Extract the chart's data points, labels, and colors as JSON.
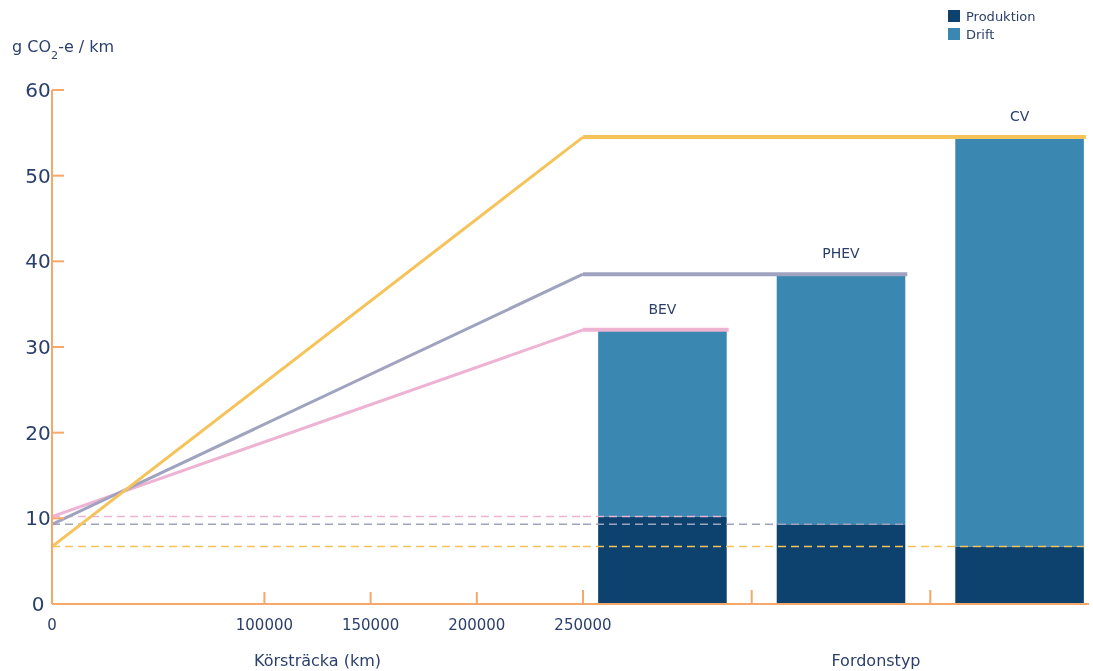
{
  "chart_data": [
    {
      "type": "line",
      "ylabel": "g CO$_{2}$-e / km",
      "xlabel": "Körsträcka (km)",
      "xlim": [
        0,
        250000
      ],
      "xticks": [
        0,
        100000,
        150000,
        200000,
        250000
      ],
      "ylim": [
        0,
        60
      ],
      "yticks": [
        0,
        10,
        20,
        30,
        40,
        50,
        60
      ],
      "grid": false,
      "marker": "none",
      "line_style": "solid",
      "x": [
        0,
        250000
      ],
      "series": [
        {
          "color": "#eeb3d3",
          "values": [
            10.2,
            32
          ]
        },
        {
          "color": "#a0a3bf",
          "values": [
            9.3,
            38.5
          ]
        },
        {
          "color": "#f5c35a",
          "values": [
            6.7,
            54.5
          ]
        }
      ],
      "ref_lines": [
        {
          "axis": "y",
          "value": 10.2,
          "color": "#eeb3d3",
          "line_style": "dashed"
        },
        {
          "axis": "y",
          "value": 9.3,
          "color": "#a0a3bf",
          "line_style": "dashed"
        },
        {
          "axis": "y",
          "value": 6.7,
          "color": "#f5c35a",
          "line_style": "dashed"
        }
      ]
    },
    {
      "type": "bar",
      "xlabel": "Fordonstyp",
      "categories": [
        "BEV",
        "PHEV",
        "CV"
      ],
      "stacked": true,
      "ylim": [
        0,
        60
      ],
      "tick_labels": "x",
      "legend": "top right",
      "series": [
        {
          "name": "Produktion",
          "color": "#0d426e",
          "values": [
            10.2,
            9.3,
            6.7
          ]
        },
        {
          "name": "Drift",
          "color": "#3a87b2",
          "values": [
            21.8,
            29.2,
            47.8
          ]
        }
      ],
      "ref_lines": [
        {
          "axis": "y",
          "value": 32,
          "color": "#eeb3d3",
          "line_style": "solid"
        },
        {
          "axis": "y",
          "value": 38.5,
          "color": "#a0a3bf",
          "line_style": "solid"
        },
        {
          "axis": "y",
          "value": 54.5,
          "color": "#f5c35a",
          "line_style": "solid"
        },
        {
          "axis": "y",
          "value": 10.2,
          "color": "#eeb3d3",
          "line_style": "dashed"
        },
        {
          "axis": "y",
          "value": 9.3,
          "color": "#a0a3bf",
          "line_style": "dashed"
        },
        {
          "axis": "y",
          "value": 6.7,
          "color": "#f5c35a",
          "line_style": "dashed"
        }
      ]
    }
  ]
}
